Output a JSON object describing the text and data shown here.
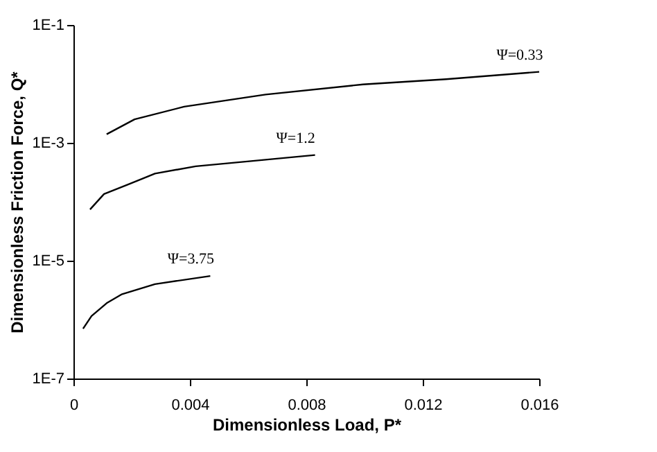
{
  "chart_data": {
    "type": "line",
    "xlabel": "Dimensionless Load, P*",
    "ylabel": "Dimensionless Friction Force, Q*",
    "log": "y",
    "xlim": [
      0,
      0.016
    ],
    "ylim": [
      1e-07,
      0.1
    ],
    "xticks": [
      0,
      0.004,
      0.008,
      0.012,
      0.016
    ],
    "yticks": [
      {
        "value": 1e-07,
        "label": "1E-7"
      },
      {
        "value": 1e-05,
        "label": "1E-5"
      },
      {
        "value": 0.001,
        "label": "1E-3"
      },
      {
        "value": 0.1,
        "label": "1E-1"
      }
    ],
    "grid": false,
    "legend": false,
    "marker": "none",
    "line_style": "solid",
    "series": [
      {
        "name": "Ψ=0.33",
        "color": "#000000",
        "x": [
          0.00114,
          0.0021,
          0.0038,
          0.0066,
          0.00995,
          0.0128,
          0.016
        ],
        "values": [
          0.0014,
          0.0025,
          0.0041,
          0.0066,
          0.0098,
          0.012,
          0.016
        ]
      },
      {
        "name": "Ψ=1.2",
        "color": "#000000",
        "x": [
          0.00057,
          0.00105,
          0.00186,
          0.0028,
          0.0042,
          0.0061,
          0.0083
        ],
        "values": [
          7.4e-05,
          0.000135,
          0.000195,
          0.0003,
          0.0004,
          0.00049,
          0.00062
        ]
      },
      {
        "name": "Ψ=3.75",
        "color": "#000000",
        "x": [
          0.00033,
          0.00062,
          0.00114,
          0.00167,
          0.0028,
          0.0047
        ],
        "values": [
          7e-07,
          1.15e-06,
          1.9e-06,
          2.7e-06,
          4e-06,
          5.5e-06
        ]
      }
    ]
  }
}
